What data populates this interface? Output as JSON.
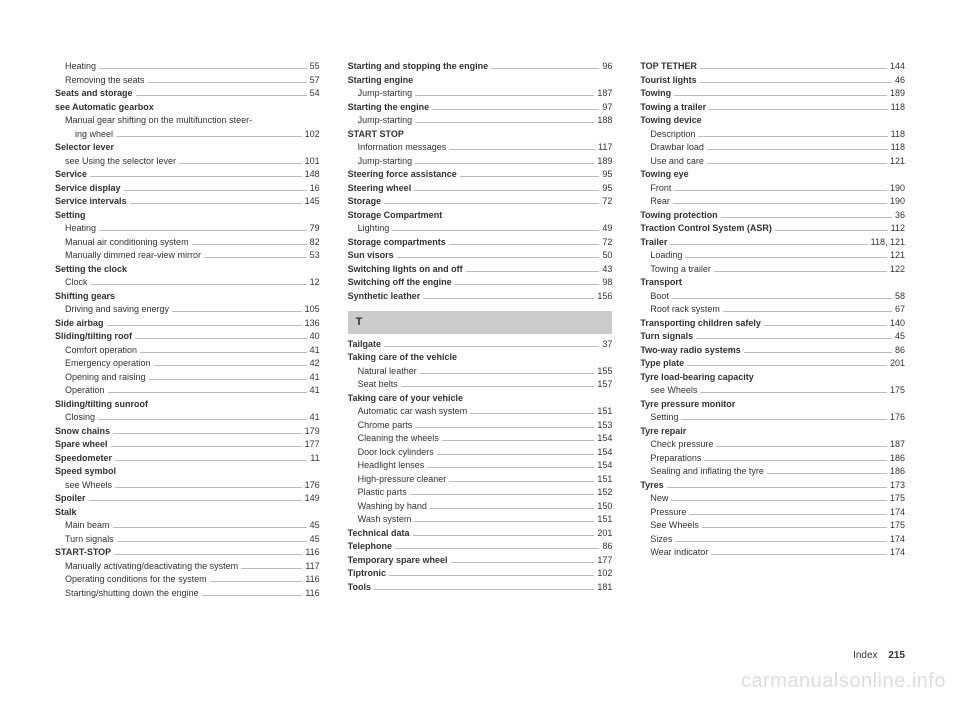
{
  "section_letter": "T",
  "footer_label": "Index",
  "footer_page": "215",
  "watermark": "carmanualsonline.info",
  "col1": [
    {
      "t": "Heating",
      "p": "55",
      "indent": true
    },
    {
      "t": "Removing the seats",
      "p": "57",
      "indent": true
    },
    {
      "t": "Seats and storage",
      "p": "54",
      "bold": true
    },
    {
      "t": "see Automatic gearbox",
      "bold": true,
      "header": true
    },
    {
      "t": "Manual gear shifting on the multifunction steer-",
      "indent": true,
      "header": true
    },
    {
      "t": "ing wheel",
      "p": "102",
      "indent": true,
      "extra": true
    },
    {
      "t": "Selector lever",
      "bold": true,
      "header": true
    },
    {
      "t": "see Using the selector lever",
      "p": "101",
      "indent": true
    },
    {
      "t": "Service",
      "p": "148",
      "bold": true
    },
    {
      "t": "Service display",
      "p": "16",
      "bold": true
    },
    {
      "t": "Service intervals",
      "p": "145",
      "bold": true
    },
    {
      "t": "Setting",
      "bold": true,
      "header": true
    },
    {
      "t": "Heating",
      "p": "79",
      "indent": true
    },
    {
      "t": "Manual air conditioning system",
      "p": "82",
      "indent": true
    },
    {
      "t": "Manually dimmed rear-view mirror",
      "p": "53",
      "indent": true
    },
    {
      "t": "Setting the clock",
      "bold": true,
      "header": true
    },
    {
      "t": "Clock",
      "p": "12",
      "indent": true
    },
    {
      "t": "Shifting gears",
      "bold": true,
      "header": true
    },
    {
      "t": "Driving and saving energy",
      "p": "105",
      "indent": true
    },
    {
      "t": "Side airbag",
      "p": "136",
      "bold": true
    },
    {
      "t": "Sliding/tilting roof",
      "p": "40",
      "bold": true
    },
    {
      "t": "Comfort operation",
      "p": "41",
      "indent": true
    },
    {
      "t": "Emergency operation",
      "p": "42",
      "indent": true
    },
    {
      "t": "Opening and raising",
      "p": "41",
      "indent": true
    },
    {
      "t": "Operation",
      "p": "41",
      "indent": true
    },
    {
      "t": "Sliding/tilting sunroof",
      "bold": true,
      "header": true
    },
    {
      "t": "Closing",
      "p": "41",
      "indent": true
    },
    {
      "t": "Snow chains",
      "p": "179",
      "bold": true
    },
    {
      "t": "Spare wheel",
      "p": "177",
      "bold": true
    },
    {
      "t": "Speedometer",
      "p": "11",
      "bold": true
    },
    {
      "t": "Speed symbol",
      "bold": true,
      "header": true
    },
    {
      "t": "see Wheels",
      "p": "176",
      "indent": true
    },
    {
      "t": "Spoiler",
      "p": "149",
      "bold": true
    },
    {
      "t": "Stalk",
      "bold": true,
      "header": true
    },
    {
      "t": "Main beam",
      "p": "45",
      "indent": true
    },
    {
      "t": "Turn signals",
      "p": "45",
      "indent": true
    },
    {
      "t": "START-STOP",
      "p": "116",
      "bold": true
    },
    {
      "t": "Manually activating/deactivating the system",
      "p": "117",
      "indent": true
    },
    {
      "t": "Operating conditions for the system",
      "p": "116",
      "indent": true
    },
    {
      "t": "Starting/shutting down the engine",
      "p": "116",
      "indent": true
    }
  ],
  "col2": [
    {
      "t": "Starting and stopping the engine",
      "p": "96",
      "bold": true
    },
    {
      "t": "Starting engine",
      "bold": true,
      "header": true
    },
    {
      "t": "Jump-starting",
      "p": "187",
      "indent": true
    },
    {
      "t": "Starting the engine",
      "p": "97",
      "bold": true
    },
    {
      "t": "Jump-starting",
      "p": "188",
      "indent": true
    },
    {
      "t": "START STOP",
      "bold": true,
      "header": true
    },
    {
      "t": "Information messages",
      "p": "117",
      "indent": true
    },
    {
      "t": "Jump-starting",
      "p": "189",
      "indent": true
    },
    {
      "t": "Steering force assistance",
      "p": "95",
      "bold": true
    },
    {
      "t": "Steering wheel",
      "p": "95",
      "bold": true
    },
    {
      "t": "Storage",
      "p": "72",
      "bold": true
    },
    {
      "t": "Storage Compartment",
      "bold": true,
      "header": true
    },
    {
      "t": "Lighting",
      "p": "49",
      "indent": true
    },
    {
      "t": "Storage compartments",
      "p": "72",
      "bold": true
    },
    {
      "t": "Sun visors",
      "p": "50",
      "bold": true
    },
    {
      "t": "Switching lights on and off",
      "p": "43",
      "bold": true
    },
    {
      "t": "Switching off the engine",
      "p": "98",
      "bold": true
    },
    {
      "t": "Synthetic leather",
      "p": "156",
      "bold": true
    },
    {
      "letter": true
    },
    {
      "t": "Tailgate",
      "p": "37",
      "bold": true
    },
    {
      "t": "Taking care of the vehicle",
      "bold": true,
      "header": true
    },
    {
      "t": "Natural leather",
      "p": "155",
      "indent": true
    },
    {
      "t": "Seat belts",
      "p": "157",
      "indent": true
    },
    {
      "t": "Taking care of your vehicle",
      "bold": true,
      "header": true
    },
    {
      "t": "Automatic car wash system",
      "p": "151",
      "indent": true
    },
    {
      "t": "Chrome parts",
      "p": "153",
      "indent": true
    },
    {
      "t": "Cleaning the wheels",
      "p": "154",
      "indent": true
    },
    {
      "t": "Door lock cylinders",
      "p": "154",
      "indent": true
    },
    {
      "t": "Headlight lenses",
      "p": "154",
      "indent": true
    },
    {
      "t": "High-pressure cleaner",
      "p": "151",
      "indent": true
    },
    {
      "t": "Plastic parts",
      "p": "152",
      "indent": true
    },
    {
      "t": "Washing by hand",
      "p": "150",
      "indent": true
    },
    {
      "t": "Wash system",
      "p": "151",
      "indent": true
    },
    {
      "t": "Technical data",
      "p": "201",
      "bold": true
    },
    {
      "t": "Telephone",
      "p": "86",
      "bold": true
    },
    {
      "t": "Temporary spare wheel",
      "p": "177",
      "bold": true
    },
    {
      "t": "Tiptronic",
      "p": "102",
      "bold": true
    },
    {
      "t": "Tools",
      "p": "181",
      "bold": true
    }
  ],
  "col3": [
    {
      "t": "TOP TETHER",
      "p": "144",
      "bold": true
    },
    {
      "t": "Tourist lights",
      "p": "46",
      "bold": true
    },
    {
      "t": "Towing",
      "p": "189",
      "bold": true
    },
    {
      "t": "Towing a trailer",
      "p": "118",
      "bold": true
    },
    {
      "t": "Towing device",
      "bold": true,
      "header": true
    },
    {
      "t": "Description",
      "p": "118",
      "indent": true
    },
    {
      "t": "Drawbar load",
      "p": "118",
      "indent": true
    },
    {
      "t": "Use and care",
      "p": "121",
      "indent": true
    },
    {
      "t": "Towing eye",
      "bold": true,
      "header": true
    },
    {
      "t": "Front",
      "p": "190",
      "indent": true
    },
    {
      "t": "Rear",
      "p": "190",
      "indent": true
    },
    {
      "t": "Towing protection",
      "p": "36",
      "bold": true
    },
    {
      "t": "Traction Control System (ASR)",
      "p": "112",
      "bold": true
    },
    {
      "t": "Trailer",
      "p": "118, 121",
      "bold": true
    },
    {
      "t": "Loading",
      "p": "121",
      "indent": true
    },
    {
      "t": "Towing a trailer",
      "p": "122",
      "indent": true
    },
    {
      "t": "Transport",
      "bold": true,
      "header": true
    },
    {
      "t": "Boot",
      "p": "58",
      "indent": true
    },
    {
      "t": "Roof rack system",
      "p": "67",
      "indent": true
    },
    {
      "t": "Transporting children safely",
      "p": "140",
      "bold": true
    },
    {
      "t": "Turn signals",
      "p": "45",
      "bold": true
    },
    {
      "t": "Two-way radio systems",
      "p": "86",
      "bold": true
    },
    {
      "t": "Type plate",
      "p": "201",
      "bold": true
    },
    {
      "t": "Tyre load-bearing capacity",
      "bold": true,
      "header": true
    },
    {
      "t": "see Wheels",
      "p": "175",
      "indent": true
    },
    {
      "t": "Tyre pressure monitor",
      "bold": true,
      "header": true
    },
    {
      "t": "Setting",
      "p": "176",
      "indent": true
    },
    {
      "t": "Tyre repair",
      "bold": true,
      "header": true
    },
    {
      "t": "Check pressure",
      "p": "187",
      "indent": true
    },
    {
      "t": "Preparations",
      "p": "186",
      "indent": true
    },
    {
      "t": "Sealing and inflating the tyre",
      "p": "186",
      "indent": true
    },
    {
      "t": "Tyres",
      "p": "173",
      "bold": true
    },
    {
      "t": "New",
      "p": "175",
      "indent": true
    },
    {
      "t": "Pressure",
      "p": "174",
      "indent": true
    },
    {
      "t": "See Wheels",
      "p": "175",
      "indent": true
    },
    {
      "t": "Sizes",
      "p": "174",
      "indent": true
    },
    {
      "t": "Wear indicator",
      "p": "174",
      "indent": true
    }
  ]
}
